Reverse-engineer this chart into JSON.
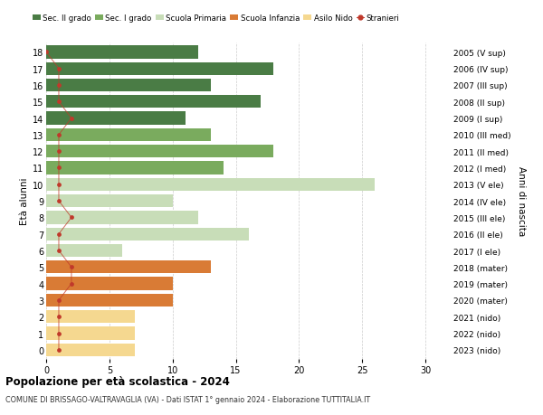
{
  "ages": [
    18,
    17,
    16,
    15,
    14,
    13,
    12,
    11,
    10,
    9,
    8,
    7,
    6,
    5,
    4,
    3,
    2,
    1,
    0
  ],
  "years": [
    "2005 (V sup)",
    "2006 (IV sup)",
    "2007 (III sup)",
    "2008 (II sup)",
    "2009 (I sup)",
    "2010 (III med)",
    "2011 (II med)",
    "2012 (I med)",
    "2013 (V ele)",
    "2014 (IV ele)",
    "2015 (III ele)",
    "2016 (II ele)",
    "2017 (I ele)",
    "2018 (mater)",
    "2019 (mater)",
    "2020 (mater)",
    "2021 (nido)",
    "2022 (nido)",
    "2023 (nido)"
  ],
  "bar_values": [
    12,
    18,
    13,
    17,
    11,
    13,
    18,
    14,
    26,
    10,
    12,
    16,
    6,
    13,
    10,
    10,
    7,
    7,
    7
  ],
  "bar_colors": [
    "#4a7c45",
    "#4a7c45",
    "#4a7c45",
    "#4a7c45",
    "#4a7c45",
    "#7aab5e",
    "#7aab5e",
    "#7aab5e",
    "#c8ddb8",
    "#c8ddb8",
    "#c8ddb8",
    "#c8ddb8",
    "#c8ddb8",
    "#d97b35",
    "#d97b35",
    "#d97b35",
    "#f5d890",
    "#f5d890",
    "#f5d890"
  ],
  "stranieri_values": [
    0,
    1,
    1,
    1,
    2,
    1,
    1,
    1,
    1,
    1,
    2,
    1,
    1,
    2,
    2,
    1,
    1,
    1,
    1
  ],
  "stranieri_color": "#c0392b",
  "legend_labels": [
    "Sec. II grado",
    "Sec. I grado",
    "Scuola Primaria",
    "Scuola Infanzia",
    "Asilo Nido",
    "Stranieri"
  ],
  "legend_colors": [
    "#4a7c45",
    "#7aab5e",
    "#c8ddb8",
    "#d97b35",
    "#f5d890",
    "#c0392b"
  ],
  "ylabel_left": "Età alunni",
  "ylabel_right": "Anni di nascita",
  "title": "Popolazione per età scolastica - 2024",
  "subtitle": "COMUNE DI BRISSAGO-VALTRAVAGLIA (VA) - Dati ISTAT 1° gennaio 2024 - Elaborazione TUTTITALIA.IT",
  "xlim": [
    0,
    32
  ],
  "xticks": [
    0,
    5,
    10,
    15,
    20,
    25,
    30
  ],
  "bg_color": "#ffffff",
  "grid_color": "#cccccc",
  "bar_height": 0.78
}
